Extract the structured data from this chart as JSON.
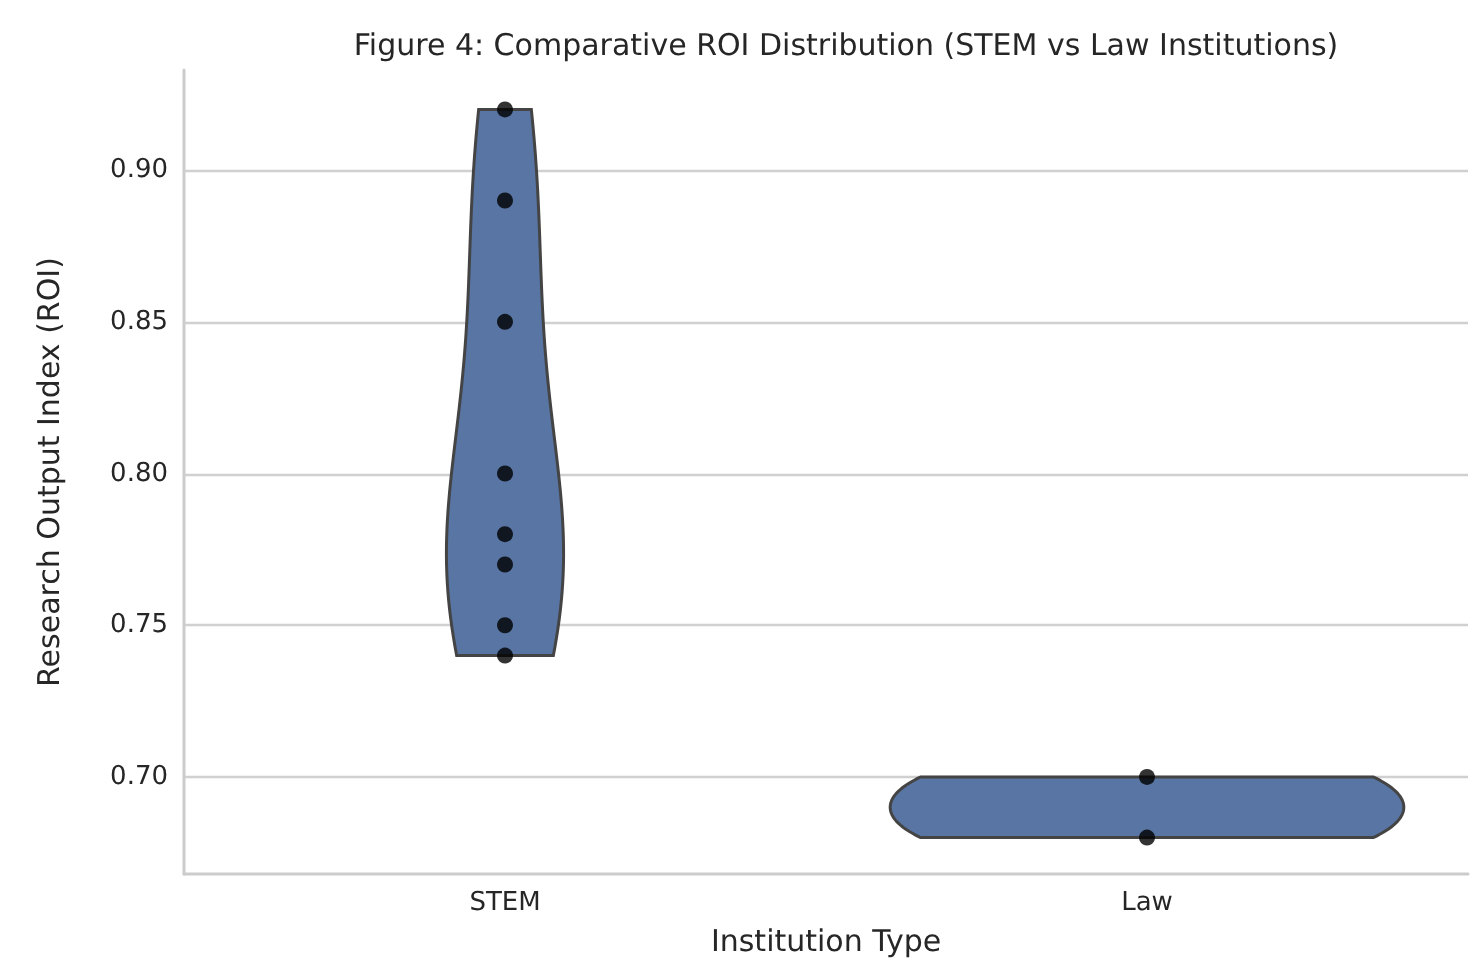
{
  "chart_data": {
    "type": "scatter",
    "title": "Figure 4: Comparative ROI Distribution (STEM vs Law Institutions)",
    "xlabel": "Institution Type",
    "ylabel": "Research Output Index (ROI)",
    "categories": [
      "STEM",
      "Law"
    ],
    "color": "#5875a4",
    "series": [
      {
        "color": "#000000",
        "x": [
          "STEM",
          "STEM",
          "STEM",
          "STEM",
          "STEM",
          "STEM",
          "STEM",
          "STEM",
          "Law",
          "Law"
        ],
        "values": [
          0.92,
          0.89,
          0.85,
          0.8,
          0.78,
          0.77,
          0.75,
          0.74,
          0.7,
          0.68
        ]
      }
    ],
    "ylim": [
      0.668,
      0.933
    ],
    "yticks": [
      {
        "value": 0.7,
        "label": "0.70"
      },
      {
        "value": 0.75,
        "label": "0.75"
      },
      {
        "value": 0.8,
        "label": "0.80"
      },
      {
        "value": 0.85,
        "label": "0.85"
      },
      {
        "value": 0.9,
        "label": "0.90"
      }
    ],
    "grid": "y",
    "marker": "circle"
  }
}
